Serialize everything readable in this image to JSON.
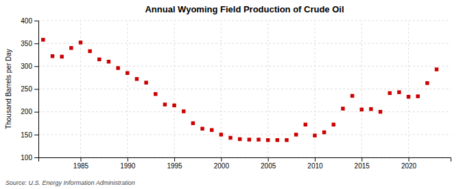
{
  "chart_data": {
    "type": "scatter",
    "title": "Annual Wyoming Field Production of Crude Oil",
    "ylabel": "Thousand Barrels per Day",
    "source": "Source: U.S. Energy Information Administration",
    "x": [
      1981,
      1982,
      1983,
      1984,
      1985,
      1986,
      1987,
      1988,
      1989,
      1990,
      1991,
      1992,
      1993,
      1994,
      1995,
      1996,
      1997,
      1998,
      1999,
      2000,
      2001,
      2002,
      2003,
      2004,
      2005,
      2006,
      2007,
      2008,
      2009,
      2010,
      2011,
      2012,
      2013,
      2014,
      2015,
      2016,
      2017,
      2018,
      2019,
      2020,
      2021,
      2022,
      2023
    ],
    "values": [
      358,
      322,
      321,
      340,
      352,
      333,
      315,
      310,
      296,
      285,
      272,
      264,
      239,
      216,
      214,
      201,
      175,
      163,
      160,
      150,
      143,
      140,
      139,
      139,
      138,
      138,
      138,
      150,
      172,
      148,
      155,
      172,
      207,
      235,
      205,
      206,
      200,
      241,
      243,
      233,
      234,
      263,
      293
    ],
    "color": "#cc0000",
    "marker": "square",
    "xlim": [
      1980.5,
      2024.5
    ],
    "xticks": [
      1985,
      1990,
      1995,
      2000,
      2005,
      2010,
      2015,
      2020
    ],
    "ylim": [
      100,
      400
    ],
    "yticks": [
      100,
      150,
      200,
      250,
      300,
      350,
      400
    ],
    "grid": true
  }
}
